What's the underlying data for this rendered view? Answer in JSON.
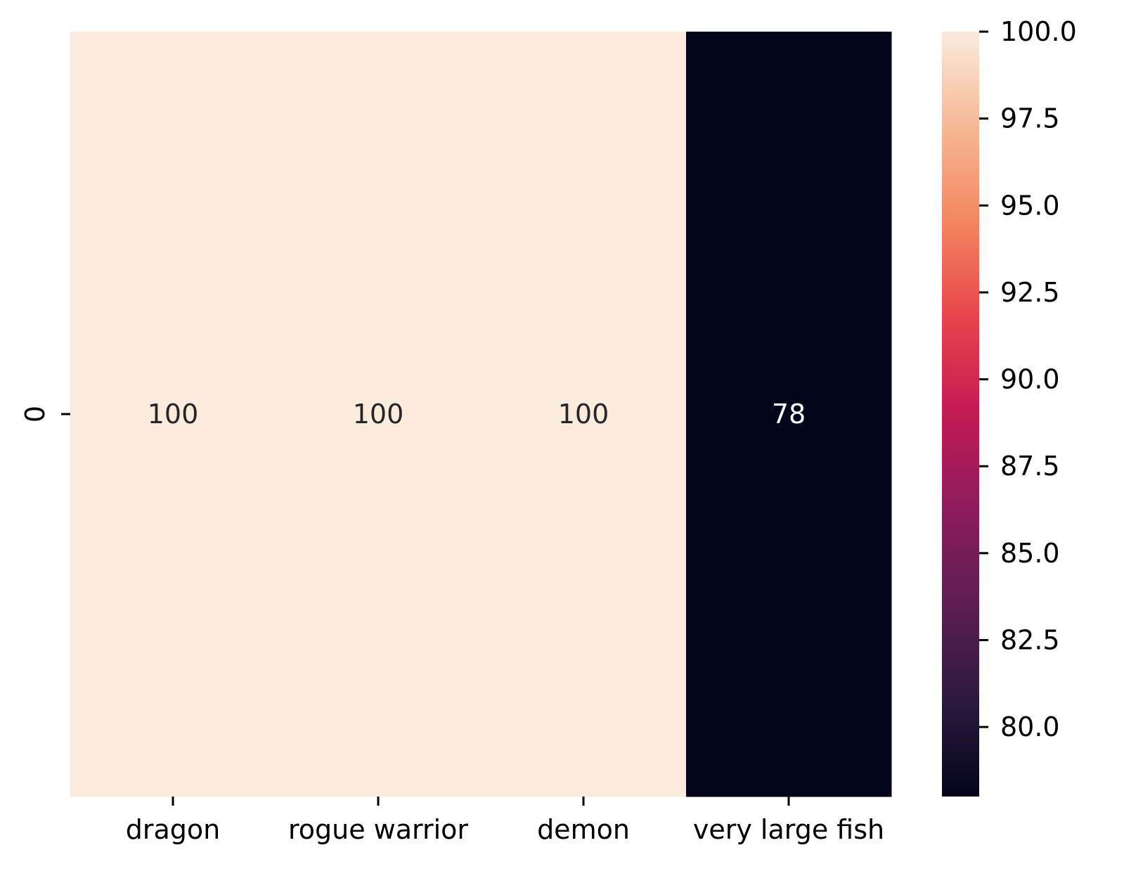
{
  "chart_data": {
    "type": "heatmap",
    "title": "",
    "xlabel": "",
    "ylabel": "",
    "columns": [
      "dragon",
      "rogue warrior",
      "demon",
      "very large fish"
    ],
    "rows": [
      "0"
    ],
    "values": [
      [
        100,
        100,
        100,
        78
      ]
    ],
    "cell_labels": [
      [
        "100",
        "100",
        "100",
        "78"
      ]
    ],
    "colorbar": {
      "min": 78,
      "max": 100,
      "ticks": [
        80.0,
        82.5,
        85.0,
        87.5,
        90.0,
        92.5,
        95.0,
        97.5,
        100.0
      ],
      "tick_labels": [
        "80.0",
        "82.5",
        "85.0",
        "87.5",
        "90.0",
        "92.5",
        "95.0",
        "97.5",
        "100.0"
      ],
      "colormap": "rocket",
      "color_stops": [
        "#03051a",
        "#2b1a3e",
        "#5c1e51",
        "#8d1c5d",
        "#c21a55",
        "#e8434b",
        "#f3865f",
        "#f6b895",
        "#faebdd"
      ]
    }
  }
}
